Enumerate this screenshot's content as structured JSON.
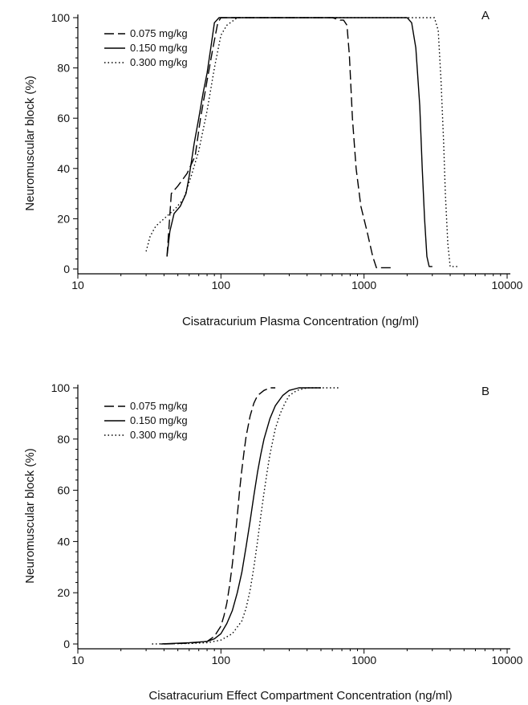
{
  "chart_data": [
    {
      "type": "line",
      "panel_label": "A",
      "xlabel": "Cisatracurium Plasma Concentration (ng/ml)",
      "ylabel": "Neuromuscular block (%)",
      "xscale": "log",
      "xlim": [
        10,
        10000
      ],
      "ylim": [
        0,
        100
      ],
      "xticks": [
        "10",
        "100",
        "1000",
        "10000"
      ],
      "yticks": [
        "0",
        "20",
        "40",
        "60",
        "80",
        "100"
      ],
      "legend_position": "top-left",
      "series": [
        {
          "name": "0.075 mg/kg",
          "style": "dashed",
          "x": [
            42,
            45,
            50,
            58,
            66,
            72,
            80,
            88,
            95,
            100,
            110,
            150,
            300,
            600,
            680,
            720,
            760,
            790,
            830,
            880,
            950,
            1050,
            1150,
            1220,
            1300,
            1550
          ],
          "y": [
            5,
            30,
            33,
            38,
            45,
            60,
            75,
            88,
            98,
            100,
            100,
            100,
            100,
            100,
            99,
            99,
            97,
            85,
            60,
            40,
            25,
            15,
            5,
            0.5,
            0.5,
            0.5
          ]
        },
        {
          "name": "0.150 mg/kg",
          "style": "solid",
          "x": [
            42,
            44,
            47,
            52,
            57,
            60,
            65,
            70,
            75,
            80,
            85,
            90,
            97,
            105,
            130,
            500,
            1500,
            2000,
            2150,
            2300,
            2450,
            2550,
            2650,
            2750,
            2850,
            3000
          ],
          "y": [
            5,
            15,
            22,
            25,
            30,
            37,
            50,
            60,
            70,
            78,
            88,
            98,
            100,
            100,
            100,
            100,
            100,
            100,
            98,
            88,
            65,
            40,
            20,
            5,
            1,
            1
          ]
        },
        {
          "name": "0.300 mg/kg",
          "style": "dotted",
          "x": [
            30,
            32,
            35,
            40,
            48,
            55,
            62,
            70,
            80,
            90,
            100,
            110,
            130,
            180,
            500,
            1500,
            2500,
            3100,
            3300,
            3450,
            3600,
            3700,
            3850,
            4000,
            4500
          ],
          "y": [
            7,
            13,
            17,
            20,
            24,
            28,
            37,
            47,
            63,
            80,
            93,
            97,
            100,
            100,
            100,
            100,
            100,
            100,
            95,
            75,
            50,
            30,
            10,
            1,
            1
          ]
        }
      ]
    },
    {
      "type": "line",
      "panel_label": "B",
      "xlabel": "Cisatracurium Effect Compartment Concentration (ng/ml)",
      "ylabel": "Neuromuscular block (%)",
      "xscale": "log",
      "xlim": [
        10,
        10000
      ],
      "ylim": [
        0,
        100
      ],
      "xticks": [
        "10",
        "100",
        "1000",
        "10000"
      ],
      "yticks": [
        "0",
        "20",
        "40",
        "60",
        "80",
        "100"
      ],
      "legend_position": "top-left",
      "series": [
        {
          "name": "0.075 mg/kg",
          "style": "dashed",
          "x": [
            40,
            60,
            80,
            90,
            100,
            105,
            110,
            115,
            120,
            125,
            130,
            135,
            140,
            145,
            150,
            160,
            170,
            180,
            200,
            220,
            240
          ],
          "y": [
            0,
            0.3,
            1,
            3,
            7,
            11,
            16,
            23,
            31,
            40,
            50,
            60,
            68,
            75,
            81,
            89,
            94,
            97,
            99,
            100,
            100
          ]
        },
        {
          "name": "0.150 mg/kg",
          "style": "solid",
          "x": [
            38,
            60,
            80,
            90,
            100,
            110,
            120,
            130,
            140,
            150,
            160,
            170,
            180,
            190,
            200,
            220,
            240,
            270,
            300,
            350,
            420,
            500
          ],
          "y": [
            0,
            0.5,
            1,
            2,
            4,
            8,
            13,
            20,
            28,
            38,
            48,
            58,
            67,
            74,
            80,
            88,
            93,
            97,
            99,
            100,
            100,
            100
          ]
        },
        {
          "name": "0.300 mg/kg",
          "style": "dotted",
          "x": [
            33,
            60,
            80,
            100,
            120,
            140,
            150,
            160,
            170,
            180,
            190,
            200,
            210,
            220,
            240,
            260,
            280,
            300,
            340,
            400,
            500,
            680
          ],
          "y": [
            0,
            0.2,
            0.5,
            1.5,
            4,
            9,
            14,
            21,
            30,
            40,
            50,
            59,
            67,
            74,
            84,
            90,
            94,
            97,
            99,
            100,
            100,
            100
          ]
        }
      ]
    }
  ]
}
